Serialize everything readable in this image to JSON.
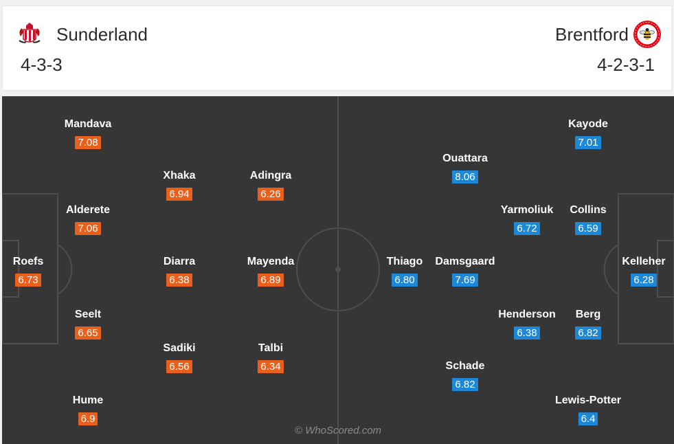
{
  "home": {
    "name": "Sunderland",
    "formation": "4-3-3",
    "crest_icon": "sunderland-crest-icon",
    "color": "#e8601c",
    "players": [
      {
        "name": "Mandava",
        "rating": "7.08"
      },
      {
        "name": "Xhaka",
        "rating": "6.94"
      },
      {
        "name": "Adingra",
        "rating": "6.26"
      },
      {
        "name": "Alderete",
        "rating": "7.06"
      },
      {
        "name": "Roefs",
        "rating": "6.73"
      },
      {
        "name": "Diarra",
        "rating": "6.38"
      },
      {
        "name": "Mayenda",
        "rating": "6.89"
      },
      {
        "name": "Seelt",
        "rating": "6.65"
      },
      {
        "name": "Sadiki",
        "rating": "6.56"
      },
      {
        "name": "Talbi",
        "rating": "6.34"
      },
      {
        "name": "Hume",
        "rating": "6.9"
      }
    ]
  },
  "away": {
    "name": "Brentford",
    "formation": "4-2-3-1",
    "crest_icon": "brentford-crest-icon",
    "color": "#1e88d8",
    "players": [
      {
        "name": "Kayode",
        "rating": "7.01"
      },
      {
        "name": "Ouattara",
        "rating": "8.06"
      },
      {
        "name": "Yarmoliuk",
        "rating": "6.72"
      },
      {
        "name": "Collins",
        "rating": "6.59"
      },
      {
        "name": "Thiago",
        "rating": "6.80"
      },
      {
        "name": "Damsgaard",
        "rating": "7.69"
      },
      {
        "name": "Kelleher",
        "rating": "6.28"
      },
      {
        "name": "Henderson",
        "rating": "6.38"
      },
      {
        "name": "Berg",
        "rating": "6.82"
      },
      {
        "name": "Schade",
        "rating": "6.82"
      },
      {
        "name": "Lewis-Potter",
        "rating": "6.4"
      }
    ]
  },
  "watermark": "© WhoScored.com"
}
